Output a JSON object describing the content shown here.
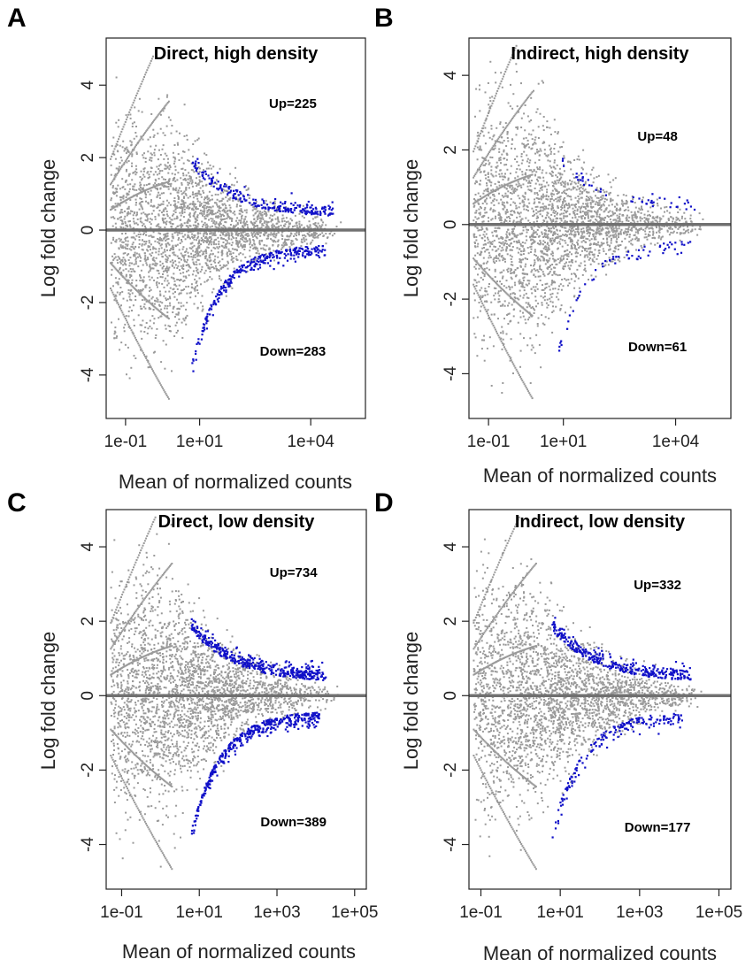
{
  "colors": {
    "background_points": "#9a9a9a",
    "significant_points": "#1010c8",
    "zero_line": "#707070",
    "axis": "#222222"
  },
  "chart_data": [
    {
      "type": "scatter",
      "panel": "A",
      "title": "Direct, high density",
      "xlabel": "Mean of normalized counts",
      "ylabel": "Log fold change",
      "x_scale": "log10",
      "xlim": [
        0.03,
        300000
      ],
      "ylim": [
        -5.2,
        5.3
      ],
      "xticks": [
        0.1,
        10,
        10000
      ],
      "xtick_labels": [
        "1e-01",
        "1e+01",
        "1e+04"
      ],
      "yticks": [
        4,
        2,
        0,
        -2,
        -4
      ],
      "ytick_labels": [
        "4",
        "2",
        "0",
        "-2",
        "-4"
      ],
      "up_label": "Up=225",
      "down_label": "Down=283",
      "up_count": 225,
      "down_count": 283,
      "x_max_data": 100000,
      "seed": 11
    },
    {
      "type": "scatter",
      "panel": "B",
      "title": "Indirect, high density",
      "xlabel": "Mean of normalized counts",
      "ylabel": "Log fold change",
      "x_scale": "log10",
      "xlim": [
        0.03,
        300000
      ],
      "ylim": [
        -5.2,
        5.0
      ],
      "xticks": [
        0.1,
        10,
        10000
      ],
      "xtick_labels": [
        "1e-01",
        "1e+01",
        "1e+04"
      ],
      "yticks": [
        4,
        2,
        0,
        -2,
        -4
      ],
      "ytick_labels": [
        "4",
        "2",
        "0",
        "-2",
        "-4"
      ],
      "up_label": "Up=48",
      "down_label": "Down=61",
      "up_count": 48,
      "down_count": 61,
      "x_max_data": 100000,
      "seed": 23
    },
    {
      "type": "scatter",
      "panel": "C",
      "title": "Direct, low density",
      "xlabel": "Mean of normalized counts",
      "ylabel": "Log fold change",
      "x_scale": "log10",
      "xlim": [
        0.04,
        200000
      ],
      "ylim": [
        -5.2,
        5.0
      ],
      "xticks": [
        0.1,
        10,
        1000,
        100000
      ],
      "xtick_labels": [
        "1e-01",
        "1e+01",
        "1e+03",
        "1e+05"
      ],
      "yticks": [
        4,
        2,
        0,
        -2,
        -4
      ],
      "ytick_labels": [
        "4",
        "2",
        "0",
        "-2",
        "-4"
      ],
      "up_label": "Up=734",
      "down_label": "Down=389",
      "up_count": 734,
      "down_count": 389,
      "x_max_data": 50000,
      "seed": 37
    },
    {
      "type": "scatter",
      "panel": "D",
      "title": "Indirect, low density",
      "xlabel": "Mean of normalized counts",
      "ylabel": "Log fold change",
      "x_scale": "log10",
      "xlim": [
        0.05,
        200000
      ],
      "ylim": [
        -5.2,
        5.0
      ],
      "xticks": [
        0.1,
        10,
        1000,
        100000
      ],
      "xtick_labels": [
        "1e-01",
        "1e+01",
        "1e+03",
        "1e+05"
      ],
      "yticks": [
        4,
        2,
        0,
        -2,
        -4
      ],
      "ytick_labels": [
        "4",
        "2",
        "0",
        "-2",
        "-4"
      ],
      "up_label": "Up=332",
      "down_label": "Down=177",
      "up_count": 332,
      "down_count": 177,
      "x_max_data": 50000,
      "seed": 53
    }
  ]
}
